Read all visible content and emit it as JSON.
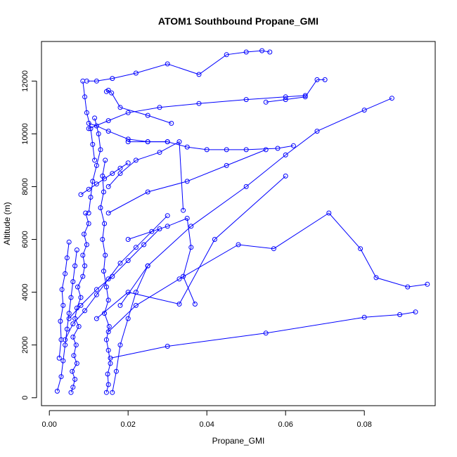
{
  "chart_data": {
    "type": "line",
    "title": "ATOM1 Southbound Propane_GMI",
    "xlabel": "Propane_GMI",
    "ylabel": "Altitude (m)",
    "xlim": [
      -0.002,
      0.098
    ],
    "ylim": [
      -300,
      13500
    ],
    "x_ticks": [
      0.0,
      0.02,
      0.04,
      0.06,
      0.08
    ],
    "x_tick_labels": [
      "0.00",
      "0.02",
      "0.04",
      "0.06",
      "0.08"
    ],
    "y_ticks": [
      0,
      2000,
      4000,
      6000,
      8000,
      10000,
      12000
    ],
    "y_tick_labels": [
      "0",
      "2000",
      "4000",
      "6000",
      "8000",
      "10000",
      "12000"
    ],
    "grid": false,
    "legend": "none",
    "marker": "open-circle",
    "series_color": "#0000ff",
    "series": [
      {
        "x": [
          0.0055,
          0.006,
          0.0065,
          0.0058,
          0.007,
          0.0062,
          0.0068,
          0.006,
          0.0075,
          0.0065,
          0.007,
          0.008,
          0.0072,
          0.0085,
          0.009,
          0.0085,
          0.0095,
          0.0088,
          0.01,
          0.0092
        ],
        "y": [
          200,
          400,
          700,
          1000,
          1300,
          1600,
          2000,
          2300,
          2700,
          3000,
          3400,
          3800,
          4200,
          4600,
          5000,
          5400,
          5800,
          6200,
          6600,
          7000
        ]
      },
      {
        "x": [
          0.0145,
          0.015,
          0.0148,
          0.0155,
          0.015,
          0.0145,
          0.0152,
          0.014,
          0.015,
          0.0145,
          0.0138,
          0.0142,
          0.0135,
          0.014,
          0.013,
          0.0138,
          0.0135,
          0.0142
        ],
        "y": [
          200,
          500,
          900,
          1300,
          1800,
          2200,
          2700,
          3200,
          3700,
          4200,
          4800,
          5400,
          6000,
          6600,
          7200,
          7800,
          8400,
          9000
        ]
      },
      {
        "x": [
          0.002,
          0.003,
          0.0035,
          0.004,
          0.0045,
          0.005,
          0.0055,
          0.006,
          0.0065,
          0.007
        ],
        "y": [
          250,
          800,
          1400,
          2000,
          2600,
          3200,
          3800,
          4400,
          5000,
          5600
        ]
      },
      {
        "x": [
          0.0025,
          0.003,
          0.0028,
          0.0035,
          0.0032,
          0.004,
          0.0045,
          0.005
        ],
        "y": [
          1500,
          2200,
          2900,
          3500,
          4100,
          4700,
          5300,
          5900
        ]
      },
      {
        "x": [
          0.016,
          0.017,
          0.018,
          0.02,
          0.022,
          0.025
        ],
        "y": [
          200,
          1000,
          2000,
          3000,
          4000,
          5000
        ]
      },
      {
        "x": [
          0.0155,
          0.03,
          0.055,
          0.08,
          0.089,
          0.093
        ],
        "y": [
          1500,
          1950,
          2450,
          3050,
          3150,
          3250
        ]
      },
      {
        "x": [
          0.015,
          0.022,
          0.033,
          0.048,
          0.057,
          0.071,
          0.079,
          0.083,
          0.091,
          0.096
        ],
        "y": [
          2500,
          3500,
          4500,
          5800,
          5650,
          7000,
          5650,
          4550,
          4200,
          4300
        ]
      },
      {
        "x": [
          0.018,
          0.025,
          0.036,
          0.05,
          0.06,
          0.068,
          0.08,
          0.087
        ],
        "y": [
          3500,
          5000,
          6500,
          8000,
          9200,
          10100,
          10900,
          11350
        ]
      },
      {
        "x": [
          0.012,
          0.02,
          0.033,
          0.042,
          0.06
        ],
        "y": [
          3000,
          4000,
          3550,
          6000,
          8400
        ]
      },
      {
        "x": [
          0.02,
          0.03,
          0.035,
          0.036,
          0.034,
          0.037
        ],
        "y": [
          6000,
          6500,
          6800,
          5700,
          4600,
          3550
        ]
      },
      {
        "x": [
          0.015,
          0.025,
          0.035,
          0.045,
          0.055
        ],
        "y": [
          7000,
          7800,
          8200,
          8800,
          9400
        ]
      },
      {
        "x": [
          0.015,
          0.018,
          0.022,
          0.028,
          0.033,
          0.034
        ],
        "y": [
          8000,
          8500,
          9000,
          9300,
          9700,
          7100
        ]
      },
      {
        "x": [
          0.01,
          0.015,
          0.02,
          0.028,
          0.038,
          0.05,
          0.06,
          0.065
        ],
        "y": [
          10200,
          10500,
          10800,
          11000,
          11150,
          11300,
          11400,
          11450
        ]
      },
      {
        "x": [
          0.0095,
          0.012,
          0.016,
          0.022,
          0.03,
          0.038,
          0.045,
          0.05,
          0.054,
          0.056
        ],
        "y": [
          12000,
          12000,
          12100,
          12300,
          12650,
          12250,
          13000,
          13100,
          13150,
          13100
        ]
      },
      {
        "x": [
          0.0145,
          0.015,
          0.0158,
          0.018,
          0.025,
          0.031
        ],
        "y": [
          11600,
          11650,
          11550,
          11000,
          10700,
          10400
        ]
      },
      {
        "x": [
          0.02,
          0.025,
          0.03,
          0.035,
          0.04,
          0.045,
          0.05,
          0.058,
          0.062
        ],
        "y": [
          9700,
          9700,
          9700,
          9500,
          9400,
          9400,
          9400,
          9450,
          9550
        ]
      },
      {
        "x": [
          0.01,
          0.012,
          0.015,
          0.02,
          0.025,
          0.03
        ],
        "y": [
          10400,
          10300,
          10100,
          9800,
          9700,
          9700
        ]
      },
      {
        "x": [
          0.055,
          0.06,
          0.065,
          0.068,
          0.07
        ],
        "y": [
          11200,
          11300,
          11400,
          12050,
          12050
        ]
      },
      {
        "x": [
          0.005,
          0.008,
          0.012,
          0.016,
          0.02,
          0.024,
          0.028
        ],
        "y": [
          3000,
          3500,
          4100,
          4600,
          5200,
          5800,
          6400
        ]
      },
      {
        "x": [
          0.004,
          0.006,
          0.009,
          0.012,
          0.015,
          0.018,
          0.022,
          0.026,
          0.03
        ],
        "y": [
          2200,
          2800,
          3300,
          3900,
          4500,
          5100,
          5700,
          6300,
          6900
        ]
      },
      {
        "x": [
          0.008,
          0.01,
          0.012,
          0.014,
          0.016,
          0.018,
          0.02
        ],
        "y": [
          7700,
          7900,
          8100,
          8300,
          8500,
          8700,
          8900
        ]
      },
      {
        "x": [
          0.0115,
          0.0125,
          0.013,
          0.012,
          0.011,
          0.0105,
          0.01
        ],
        "y": [
          10600,
          10000,
          9400,
          8800,
          8200,
          7600,
          7000
        ]
      },
      {
        "x": [
          0.0085,
          0.009,
          0.0095,
          0.0105,
          0.011,
          0.0115
        ],
        "y": [
          12000,
          11400,
          10800,
          10200,
          9600,
          9000
        ]
      }
    ]
  }
}
